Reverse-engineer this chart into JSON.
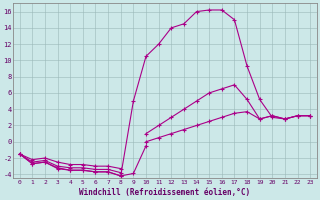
{
  "xlabel": "Windchill (Refroidissement éolien,°C)",
  "background_color": "#cce8e8",
  "grid_color": "#b0c8c8",
  "line_color": "#aa0088",
  "xlim": [
    -0.5,
    23.5
  ],
  "ylim": [
    -4.5,
    17.0
  ],
  "xticks": [
    0,
    1,
    2,
    3,
    4,
    5,
    6,
    7,
    8,
    9,
    10,
    11,
    12,
    13,
    14,
    15,
    16,
    17,
    18,
    19,
    20,
    21,
    22,
    23
  ],
  "yticks": [
    -4,
    -2,
    0,
    2,
    4,
    6,
    8,
    10,
    12,
    14,
    16
  ],
  "line1_x": [
    0,
    1,
    2,
    3,
    4,
    5,
    6,
    7,
    8,
    9,
    10,
    11,
    12,
    13,
    14,
    15,
    16,
    17,
    18,
    19,
    20,
    21,
    22,
    23
  ],
  "line1_y": [
    -1.5,
    -2.7,
    -2.5,
    -3.3,
    -3.5,
    -3.5,
    -3.7,
    -3.7,
    -4.2,
    5.0,
    10.5,
    12.0,
    14.0,
    14.5,
    16.0,
    16.2,
    16.2,
    15.0,
    9.3,
    5.2,
    3.0,
    2.8,
    3.2,
    3.2
  ],
  "line2_x": [
    0,
    1,
    2,
    3,
    4,
    5,
    6,
    7,
    8,
    9,
    10,
    11,
    12,
    13,
    14,
    15,
    16,
    17,
    18,
    19,
    20,
    21,
    22,
    23
  ],
  "line2_y": [
    -1.5,
    -2.7,
    -2.5,
    -3.2,
    -3.5,
    -3.5,
    -3.7,
    -3.7,
    -4.2,
    -3.9,
    -0.5,
    null,
    null,
    null,
    null,
    null,
    null,
    null,
    null,
    null,
    null,
    null,
    null,
    null
  ],
  "line3_x": [
    0,
    1,
    2,
    3,
    4,
    5,
    6,
    7,
    8,
    9,
    10,
    11,
    12,
    13,
    14,
    15,
    16,
    17,
    18,
    19,
    20,
    21,
    22,
    23
  ],
  "line3_y": [
    -1.5,
    -2.5,
    -2.3,
    -3.0,
    -3.2,
    -3.2,
    -3.4,
    -3.4,
    -3.8,
    null,
    1.0,
    2.0,
    3.0,
    4.0,
    5.0,
    6.0,
    6.5,
    7.0,
    5.2,
    2.8,
    3.2,
    2.8,
    3.2,
    3.2
  ],
  "line4_x": [
    0,
    1,
    2,
    3,
    4,
    5,
    6,
    7,
    8,
    9,
    10,
    11,
    12,
    13,
    14,
    15,
    16,
    17,
    18,
    19,
    20,
    21,
    22,
    23
  ],
  "line4_y": [
    -1.5,
    -2.2,
    -2.0,
    -2.5,
    -2.8,
    -2.8,
    -3.0,
    -3.0,
    -3.3,
    null,
    0.0,
    0.5,
    1.0,
    1.5,
    2.0,
    2.5,
    3.0,
    3.5,
    3.7,
    2.8,
    3.2,
    2.8,
    3.2,
    3.2
  ]
}
